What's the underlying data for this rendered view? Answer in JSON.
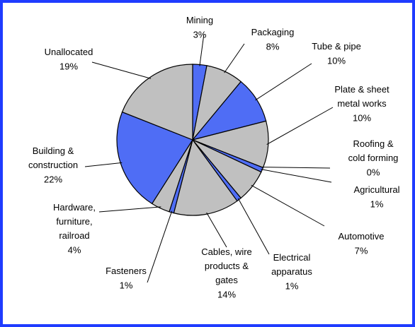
{
  "chart_data": {
    "type": "pie",
    "categories": [
      "Mining",
      "Packaging",
      "Tube & pipe",
      "Plate & sheet\nmetal works",
      "Roofing &\ncold forming",
      "Agricultural",
      "Automotive",
      "Electrical\napparatus",
      "Cables, wire\nproducts &\ngates",
      "Fasteners",
      "Hardware,\nfurniture,\nrailroad",
      "Building &\nconstruction",
      "Unallocated"
    ],
    "values": [
      3,
      8,
      10,
      10,
      0,
      1,
      7,
      1,
      14,
      1,
      4,
      22,
      19
    ],
    "value_labels": [
      "3%",
      "8%",
      "10%",
      "10%",
      "0%",
      "1%",
      "7%",
      "1%",
      "14%",
      "1%",
      "4%",
      "22%",
      "19%"
    ],
    "colors": [
      "#4f6df5",
      "#c0c0c0",
      "#4f6df5",
      "#c0c0c0",
      "#4f6df5",
      "#4f6df5",
      "#c0c0c0",
      "#4f6df5",
      "#c0c0c0",
      "#4f6df5",
      "#c0c0c0",
      "#4f6df5",
      "#c0c0c0"
    ]
  }
}
